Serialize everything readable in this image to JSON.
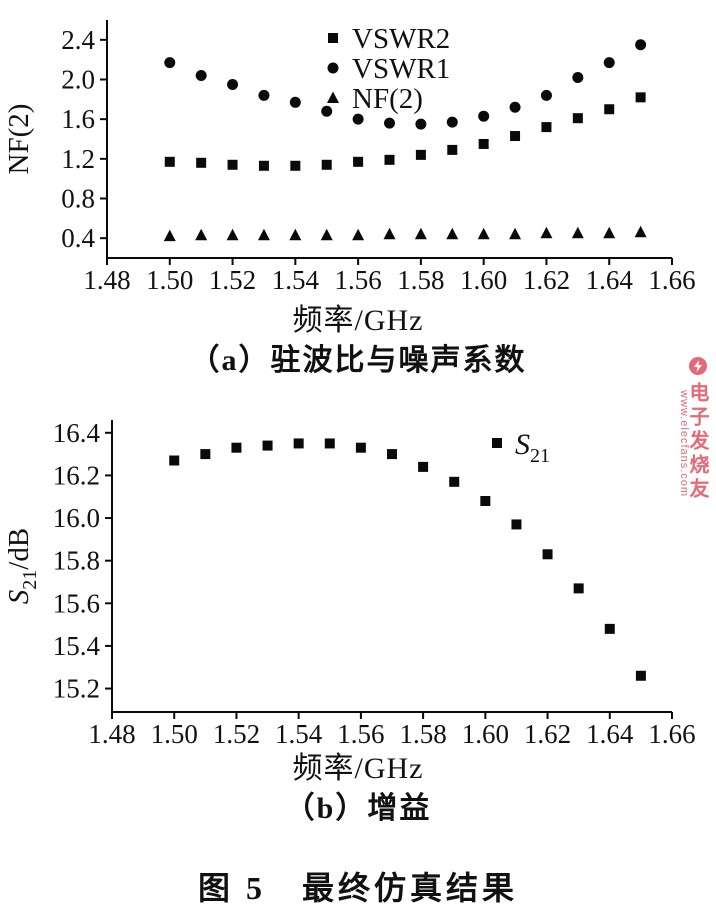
{
  "figure": {
    "caption": "图 5　最终仿真结果"
  },
  "watermark": {
    "brand": "电子发烧友",
    "url": "www.elecfans.com",
    "color": "#e56a78"
  },
  "chart_data": [
    {
      "type": "scatter",
      "caption": "（a）驻波比与噪声系数",
      "xlabel": "频率/GHz",
      "ylabel": "NF(2)",
      "xlim": [
        1.48,
        1.66
      ],
      "ylim": [
        0.2,
        2.6
      ],
      "grid": false,
      "legend_position": "top-center",
      "xtick_labels": [
        "1.48",
        "1.50",
        "1.52",
        "1.54",
        "1.56",
        "1.58",
        "1.60",
        "1.62",
        "1.64",
        "1.66"
      ],
      "ytick_labels": [
        "0.4",
        "0.8",
        "1.2",
        "1.6",
        "2.0",
        "2.4"
      ],
      "x": [
        1.5,
        1.51,
        1.52,
        1.53,
        1.54,
        1.55,
        1.56,
        1.57,
        1.58,
        1.59,
        1.6,
        1.61,
        1.62,
        1.63,
        1.64,
        1.65
      ],
      "series": [
        {
          "name": "VSWR2",
          "marker": "square",
          "values": [
            1.17,
            1.16,
            1.14,
            1.13,
            1.13,
            1.14,
            1.17,
            1.19,
            1.24,
            1.29,
            1.35,
            1.43,
            1.52,
            1.61,
            1.7,
            1.82
          ]
        },
        {
          "name": "VSWR1",
          "marker": "circle",
          "values": [
            2.17,
            2.04,
            1.95,
            1.84,
            1.77,
            1.68,
            1.6,
            1.56,
            1.55,
            1.57,
            1.63,
            1.72,
            1.84,
            2.02,
            2.17,
            2.35
          ]
        },
        {
          "name": "NF(2)",
          "marker": "triangle",
          "values": [
            0.42,
            0.43,
            0.43,
            0.43,
            0.43,
            0.43,
            0.43,
            0.44,
            0.44,
            0.44,
            0.44,
            0.44,
            0.45,
            0.45,
            0.45,
            0.46
          ]
        }
      ]
    },
    {
      "type": "scatter",
      "caption": "（b）增益",
      "xlabel": "频率/GHz",
      "ylabel": {
        "main": "S",
        "sub": "21",
        "rest": "/dB"
      },
      "xlim": [
        1.48,
        1.66
      ],
      "ylim": [
        15.09,
        16.46
      ],
      "grid": false,
      "legend_position": "right-of-peak",
      "xtick_labels": [
        "1.48",
        "1.50",
        "1.52",
        "1.54",
        "1.56",
        "1.58",
        "1.60",
        "1.62",
        "1.64",
        "1.66"
      ],
      "ytick_labels": [
        "15.2",
        "15.4",
        "15.6",
        "15.8",
        "16.0",
        "16.2",
        "16.4"
      ],
      "x": [
        1.5,
        1.51,
        1.52,
        1.53,
        1.54,
        1.55,
        1.56,
        1.57,
        1.58,
        1.59,
        1.6,
        1.61,
        1.62,
        1.63,
        1.64,
        1.65
      ],
      "series": [
        {
          "name": {
            "main": "S",
            "sub": "21"
          },
          "marker": "square",
          "values": [
            16.27,
            16.3,
            16.33,
            16.34,
            16.35,
            16.35,
            16.33,
            16.3,
            16.24,
            16.17,
            16.08,
            15.97,
            15.83,
            15.67,
            15.48,
            15.26
          ]
        }
      ]
    }
  ]
}
